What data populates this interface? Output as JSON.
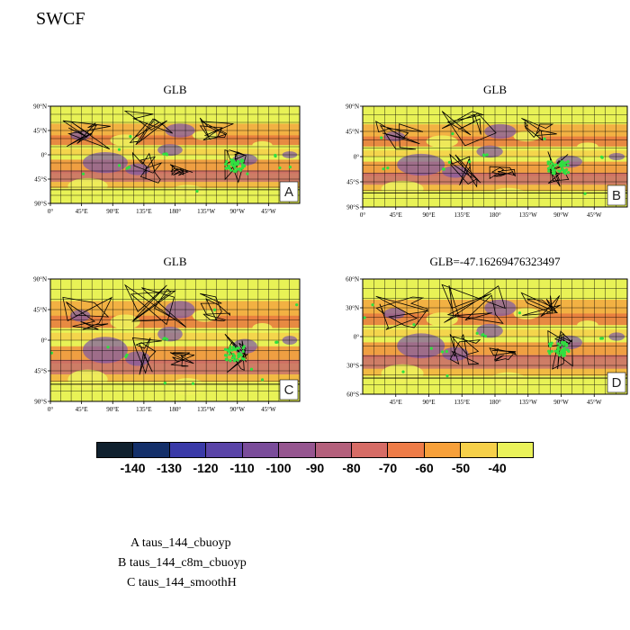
{
  "page_title": "SWCF",
  "panels": [
    {
      "title": "GLB",
      "letter": "A",
      "lat_ticks": [
        "90°N",
        "45°N",
        "0°",
        "45°S",
        "90°S"
      ],
      "lon_ticks": [
        "0°",
        "45°E",
        "90°E",
        "135°E",
        "180°",
        "135°W",
        "90°W",
        "45°W"
      ],
      "icon": "world-map-swcf"
    },
    {
      "title": "GLB",
      "letter": "B",
      "lat_ticks": [
        "90°N",
        "45°N",
        "0°",
        "45°S",
        "90°S"
      ],
      "lon_ticks": [
        "0°",
        "45°E",
        "90°E",
        "135°E",
        "180°",
        "135°W",
        "90°W",
        "45°W"
      ],
      "icon": "world-map-swcf"
    },
    {
      "title": "GLB",
      "letter": "C",
      "lat_ticks": [
        "90°N",
        "45°N",
        "0°",
        "45°S",
        "90°S"
      ],
      "lon_ticks": [
        "0°",
        "45°E",
        "90°E",
        "135°E",
        "180°",
        "135°W",
        "90°W",
        "45°W"
      ],
      "icon": "world-map-swcf"
    },
    {
      "title": "GLB=-47.16269476323497",
      "letter": "D",
      "lat_ticks": [
        "60°N",
        "30°N",
        "0°",
        "30°S",
        "60°S"
      ],
      "lon_ticks": [
        "45°E",
        "90°E",
        "135°E",
        "180°",
        "135°W",
        "90°W",
        "45°W"
      ],
      "icon": "world-map-swcf"
    }
  ],
  "colorbar": {
    "labels": [
      "-140",
      "-130",
      "-120",
      "-110",
      "-100",
      "-90",
      "-80",
      "-70",
      "-60",
      "-50",
      "-40"
    ],
    "colors": [
      "#10202e",
      "#14306a",
      "#3a3aa8",
      "#5a44a8",
      "#7a4c9a",
      "#965690",
      "#b4607c",
      "#d66c66",
      "#ee7c48",
      "#f7a03a",
      "#f6d04a",
      "#eaf25a"
    ]
  },
  "legend": [
    "A  taus_144_cbuoyp",
    "B  taus_144_c8m_cbuoyp",
    "C  taus_144_smoothH"
  ]
}
